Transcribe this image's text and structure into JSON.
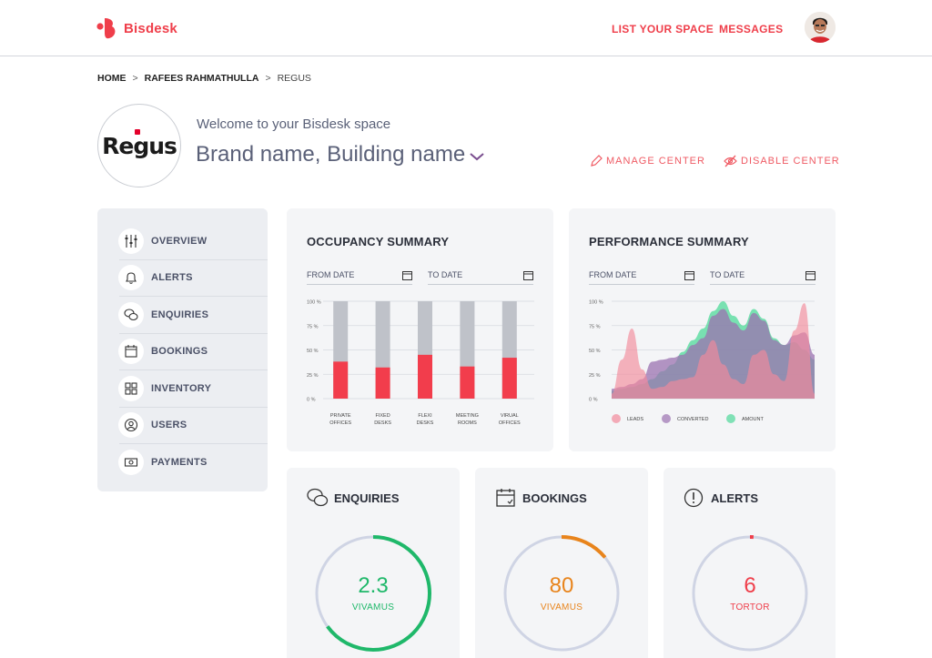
{
  "app": {
    "name": "Bisdesk",
    "brand_color": "#ef3e4a"
  },
  "header": {
    "nav": [
      "LIST YOUR SPACE",
      "MESSAGES"
    ]
  },
  "breadcrumb": {
    "items": [
      "HOME",
      "RAFEES RAHMATHULLA",
      "REGUS"
    ],
    "separator": ">"
  },
  "brand": {
    "logo_text": "Regus",
    "welcome": "Welcome to your Bisdesk space",
    "title": "Brand name, Building name",
    "manage_label": "MANAGE CENTER",
    "disable_label": "DISABLE CENTER"
  },
  "sidebar": {
    "items": [
      {
        "label": "OVERVIEW",
        "icon": "sliders-icon",
        "active": true
      },
      {
        "label": "ALERTS",
        "icon": "bell-icon",
        "active": false
      },
      {
        "label": "ENQUIRIES",
        "icon": "chat-bubbles-icon",
        "active": false
      },
      {
        "label": "BOOKINGS",
        "icon": "calendar-icon",
        "active": false
      },
      {
        "label": "INVENTORY",
        "icon": "grid-icon",
        "active": false
      },
      {
        "label": "USERS",
        "icon": "user-icon",
        "active": false
      },
      {
        "label": "PAYMENTS",
        "icon": "money-icon",
        "active": false
      }
    ]
  },
  "occupancy": {
    "title": "OCCUPANCY SUMMARY",
    "from_label": "FROM DATE",
    "to_label": "TO DATE"
  },
  "performance": {
    "title": "PERFORMANCE SUMMARY",
    "from_label": "FROM DATE",
    "to_label": "TO DATE"
  },
  "chart_data": [
    {
      "type": "bar",
      "title": "OCCUPANCY SUMMARY",
      "categories": [
        [
          "PRIVATE",
          "OFFICES"
        ],
        [
          "FIXED",
          "DESKS"
        ],
        [
          "FLEXI",
          "DESKS"
        ],
        [
          "MEETING",
          "ROOMS"
        ],
        [
          "VIRUAL",
          "OFFICES"
        ]
      ],
      "y_ticks": [
        "100 %",
        "75 %",
        "50 %",
        "25 %",
        "0 %"
      ],
      "ylim": [
        0,
        100
      ],
      "series": [
        {
          "values": [
            38,
            32,
            45,
            33,
            42
          ],
          "color": "#f23d4c"
        },
        {
          "values": [
            100,
            100,
            100,
            100,
            100
          ],
          "color": "#bfc2c9"
        }
      ]
    },
    {
      "type": "area",
      "title": "PERFORMANCE SUMMARY",
      "y_ticks": [
        "100 %",
        "75 %",
        "50 %",
        "25 %",
        "0 %"
      ],
      "ylim": [
        0,
        100
      ],
      "x": [
        0,
        1,
        2,
        3,
        4,
        5,
        6,
        7,
        8,
        9,
        10,
        11,
        12,
        13,
        14,
        15,
        16,
        17,
        18,
        19,
        20
      ],
      "series": [
        {
          "name": "LEADS",
          "color": "#f28a9b",
          "values": [
            5,
            40,
            72,
            30,
            10,
            12,
            18,
            20,
            22,
            45,
            60,
            35,
            20,
            15,
            45,
            50,
            25,
            18,
            70,
            98,
            5
          ]
        },
        {
          "name": "CONVERTED",
          "color": "#9b72b0",
          "values": [
            10,
            12,
            15,
            20,
            38,
            40,
            42,
            45,
            55,
            62,
            85,
            92,
            78,
            70,
            88,
            80,
            60,
            55,
            65,
            68,
            45
          ]
        },
        {
          "name": "AMOUNT",
          "color": "#4fd99a",
          "values": [
            8,
            10,
            12,
            15,
            20,
            28,
            35,
            48,
            60,
            72,
            90,
            100,
            85,
            75,
            92,
            82,
            62,
            55,
            58,
            50,
            40
          ]
        }
      ],
      "legend": "bottom"
    }
  ],
  "stats": [
    {
      "title": "ENQUIRIES",
      "icon": "chat-bubbles-icon",
      "value": "2.3",
      "label": "VIVAMUS",
      "color": "#1fb86a",
      "progress": 0.65
    },
    {
      "title": "BOOKINGS",
      "icon": "calendar-icon",
      "value": "80",
      "label": "VIVAMUS",
      "color": "#e8841c",
      "progress": 0.14
    },
    {
      "title": "ALERTS",
      "icon": "alert-circle-icon",
      "value": "6",
      "label": "TORTOR",
      "color": "#ef3e4a",
      "progress": 0.01
    }
  ]
}
